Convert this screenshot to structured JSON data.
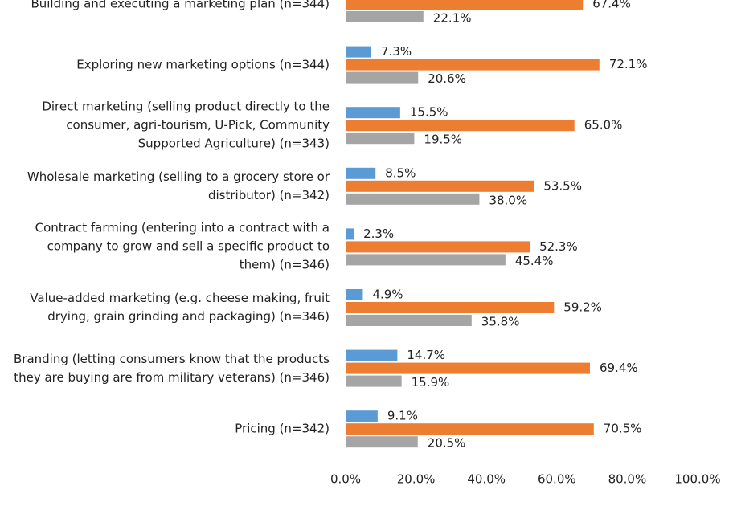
{
  "chart_data": {
    "type": "bar",
    "orientation": "horizontal",
    "categories": [
      "Building and executing a marketing plan (n=344)",
      "Exploring new marketing options (n=344)",
      "Direct marketing (selling product directly to the consumer, agri-tourism, U-Pick, Community Supported Agriculture) (n=343)",
      "Wholesale marketing (selling to a grocery store or distributor) (n=342)",
      "Contract farming (entering into a contract with a company to grow and sell a specific product to them) (n=346)",
      "Value-added marketing (e.g. cheese making, fruit drying, grain grinding and packaging) (n=346)",
      "Branding (letting consumers know that the products they are buying are from military veterans) (n=346)",
      "Pricing (n=342)"
    ],
    "series": [
      {
        "color": "#5b9bd5",
        "values": [
          null,
          7.3,
          15.5,
          8.5,
          2.3,
          4.9,
          14.7,
          9.1
        ],
        "value_labels": [
          null,
          "7.3%",
          "15.5%",
          "8.5%",
          "2.3%",
          "4.9%",
          "14.7%",
          "9.1%"
        ]
      },
      {
        "color": "#ed7d31",
        "values": [
          67.4,
          72.1,
          65.0,
          53.5,
          52.3,
          59.2,
          69.4,
          70.5
        ],
        "value_labels": [
          "67.4%",
          "72.1%",
          "65.0%",
          "53.5%",
          "52.3%",
          "59.2%",
          "69.4%",
          "70.5%"
        ]
      },
      {
        "color": "#a5a5a5",
        "values": [
          22.1,
          20.6,
          19.5,
          38.0,
          45.4,
          35.8,
          15.9,
          20.5
        ],
        "value_labels": [
          "22.1%",
          "20.6%",
          "19.5%",
          "38.0%",
          "45.4%",
          "35.8%",
          "15.9%",
          "20.5%"
        ]
      }
    ],
    "xlim": [
      0,
      100
    ],
    "xticks": [
      {
        "value": 0,
        "label": "0.0%"
      },
      {
        "value": 20,
        "label": "20.0%"
      },
      {
        "value": 40,
        "label": "40.0%"
      },
      {
        "value": 60,
        "label": "60.0%"
      },
      {
        "value": 80,
        "label": "80.0%"
      },
      {
        "value": 100,
        "label": "100.0%"
      }
    ]
  }
}
